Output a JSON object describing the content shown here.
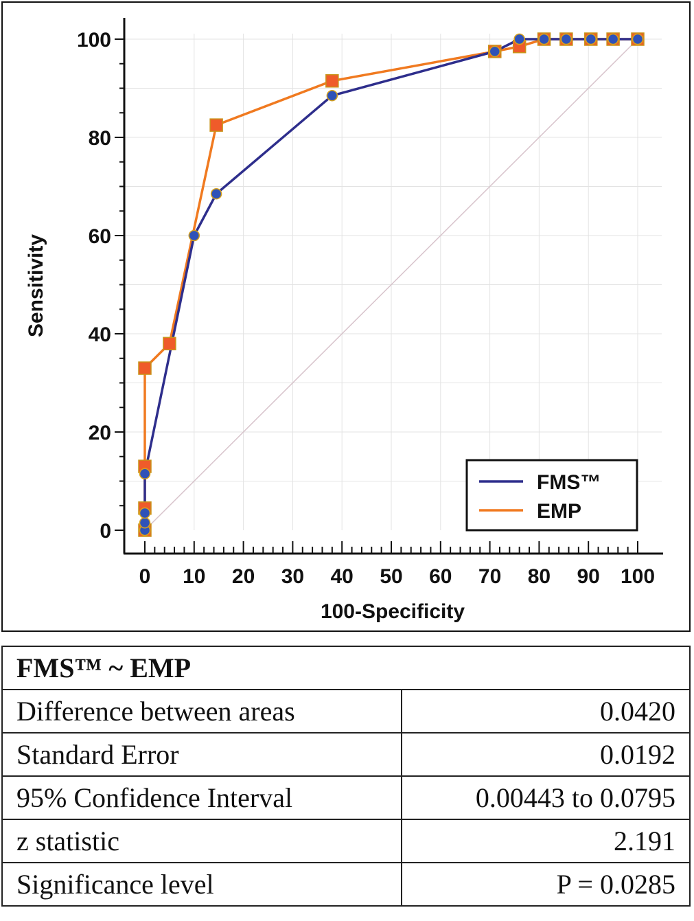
{
  "chart_data": {
    "type": "line",
    "xlabel": "100-Specificity",
    "ylabel": "Sensitivity",
    "xlim": [
      0,
      100
    ],
    "ylim": [
      0,
      100
    ],
    "xticks": [
      0,
      10,
      20,
      30,
      40,
      50,
      60,
      70,
      80,
      90,
      100
    ],
    "yticks": [
      0,
      20,
      40,
      60,
      80,
      100
    ],
    "grid": true,
    "legend_position": "bottom-right",
    "reference_line": {
      "from": [
        0,
        0
      ],
      "to": [
        100,
        100
      ],
      "color": "#d8c4cc"
    },
    "series": [
      {
        "name": "FMS™",
        "color": "#2e2e8c",
        "marker": "circle",
        "marker_color": "#2f52b8",
        "points": [
          [
            0,
            0
          ],
          [
            0,
            1.5
          ],
          [
            0,
            3.5
          ],
          [
            0,
            11.5
          ],
          [
            10,
            60
          ],
          [
            14.5,
            68.5
          ],
          [
            38,
            88.5
          ],
          [
            71,
            97.5
          ],
          [
            76,
            100
          ],
          [
            81,
            100
          ],
          [
            85.5,
            100
          ],
          [
            90.5,
            100
          ],
          [
            95,
            100
          ],
          [
            100,
            100
          ]
        ]
      },
      {
        "name": "EMP",
        "color": "#f07a20",
        "marker": "square",
        "marker_color": "#ef5b2a",
        "points": [
          [
            0,
            0
          ],
          [
            0,
            4.5
          ],
          [
            0,
            13
          ],
          [
            0,
            33
          ],
          [
            5,
            38
          ],
          [
            14.5,
            82.5
          ],
          [
            38,
            91.5
          ],
          [
            71,
            97.5
          ],
          [
            76,
            98.5
          ],
          [
            81,
            100
          ],
          [
            85.5,
            100
          ],
          [
            90.5,
            100
          ],
          [
            95,
            100
          ],
          [
            100,
            100
          ]
        ]
      }
    ]
  },
  "table": {
    "title": "FMS™ ~ EMP",
    "rows": [
      {
        "label": "Difference between areas",
        "value": "0.0420"
      },
      {
        "label": "Standard Error",
        "value": "0.0192"
      },
      {
        "label": "95% Confidence Interval",
        "value": "0.00443 to 0.0795"
      },
      {
        "label": "z statistic",
        "value": "2.191"
      },
      {
        "label": "Significance level",
        "value": "P = 0.0285"
      }
    ]
  }
}
